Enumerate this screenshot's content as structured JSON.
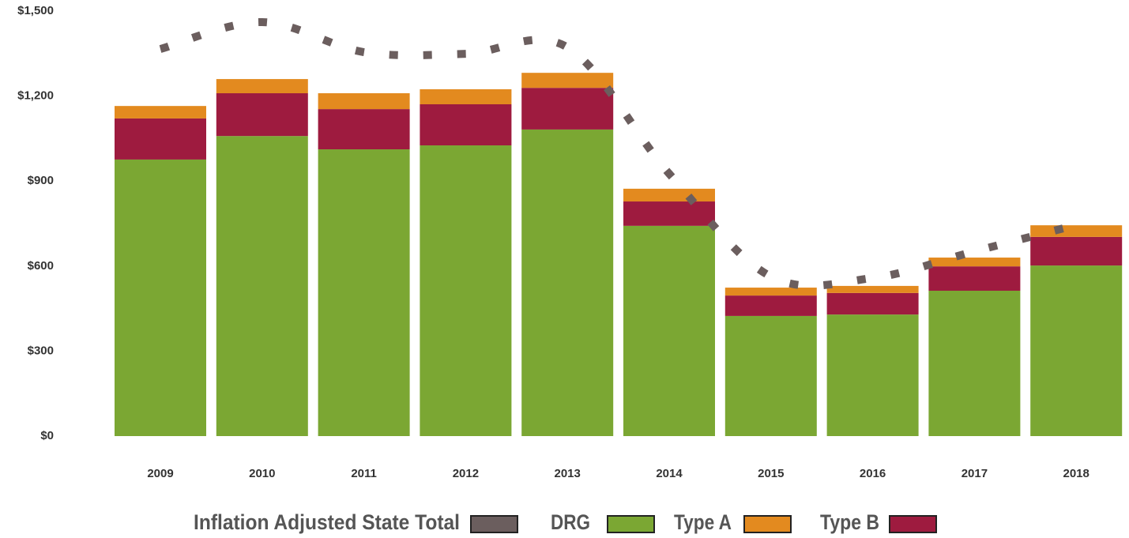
{
  "chart_data": {
    "type": "bar",
    "stacked": true,
    "categories": [
      "2009",
      "2010",
      "2011",
      "2012",
      "2013",
      "2014",
      "2015",
      "2016",
      "2017",
      "2018"
    ],
    "series": [
      {
        "name": "Inflation Adjusted State Total",
        "type": "line",
        "color": "#6b5e5e",
        "values": [
          1366,
          1461,
          1355,
          1349,
          1372,
          926,
          563,
          558,
          652,
          745
        ]
      },
      {
        "name": "DRG",
        "color": "#7ba733",
        "values": [
          976,
          1059,
          1012,
          1026,
          1082,
          742,
          424,
          429,
          513,
          602
        ]
      },
      {
        "name": "Type A",
        "color": "#e38a1f",
        "values": [
          44,
          50,
          56,
          53,
          53,
          45,
          28,
          25,
          31,
          41
        ]
      },
      {
        "name": "Type B",
        "color": "#9e1b3f",
        "values": [
          145,
          151,
          142,
          145,
          147,
          86,
          72,
          76,
          86,
          101
        ]
      }
    ],
    "ylim": [
      0,
      1500
    ],
    "yticks": [
      {
        "value": 0,
        "label": "$0"
      },
      {
        "value": 300,
        "label": "$300"
      },
      {
        "value": 600,
        "label": "$600"
      },
      {
        "value": 900,
        "label": "$900"
      },
      {
        "value": 1200,
        "label": "$1,200"
      },
      {
        "value": 1500,
        "label": "$1,500"
      }
    ],
    "grid": false,
    "legend": "bottom"
  }
}
